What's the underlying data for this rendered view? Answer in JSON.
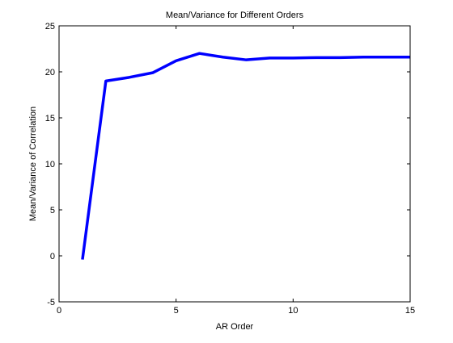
{
  "chart_data": {
    "type": "line",
    "title": "Mean/Variance for Different Orders",
    "xlabel": "AR Order",
    "ylabel": "Mean/Variance of Correlation",
    "xlim": [
      0,
      15
    ],
    "ylim": [
      -5,
      25
    ],
    "xticks": [
      0,
      5,
      10,
      15
    ],
    "yticks": [
      -5,
      0,
      5,
      10,
      15,
      20,
      25
    ],
    "grid": false,
    "legend": "none",
    "series": [
      {
        "color": "#0000ff",
        "x": [
          1,
          2,
          3,
          4,
          5,
          6,
          7,
          8,
          9,
          10,
          11,
          12,
          13,
          14,
          15
        ],
        "y": [
          -0.4,
          19.0,
          19.4,
          19.9,
          21.2,
          22.0,
          21.6,
          21.3,
          21.5,
          21.5,
          21.55,
          21.55,
          21.6,
          21.6,
          21.6
        ]
      }
    ]
  }
}
